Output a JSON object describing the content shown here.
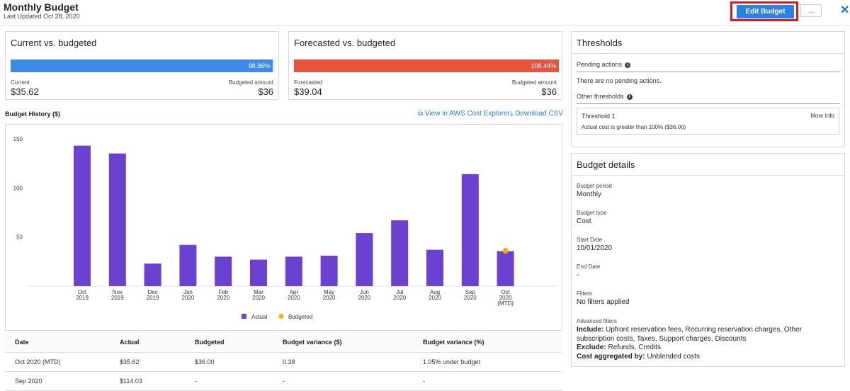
{
  "header": {
    "title": "Monthly Budget",
    "subtitle": "Last Updated Oct 28, 2020",
    "edit_label": "Edit Budget",
    "more_label": "...",
    "close_icon": "close-icon"
  },
  "current": {
    "title": "Current vs. budgeted",
    "percent_label": "98.96%",
    "percent": 98.96,
    "bar_color": "#3d8ae8",
    "left_label": "Current",
    "left_value": "$35.62",
    "right_label": "Budgeted amount",
    "right_value": "$36"
  },
  "forecast": {
    "title": "Forecasted vs. budgeted",
    "percent_label": "108.44%",
    "percent": 108.44,
    "bar_color": "#e4553b",
    "left_label": "Forecasted",
    "left_value": "$39.04",
    "right_label": "Budgeted amount",
    "right_value": "$36"
  },
  "history": {
    "title": "Budget History ($)",
    "explorer_link": "View in AWS Cost Explorer",
    "download_link": "Download CSV"
  },
  "chart_data": {
    "type": "bar",
    "categories": [
      [
        "Oct",
        "2019"
      ],
      [
        "Nov",
        "2019"
      ],
      [
        "Dec",
        "2019"
      ],
      [
        "Jan",
        "2020"
      ],
      [
        "Feb",
        "2020"
      ],
      [
        "Mar",
        "2020"
      ],
      [
        "Apr",
        "2020"
      ],
      [
        "May",
        "2020"
      ],
      [
        "Jun",
        "2020"
      ],
      [
        "Jul",
        "2020"
      ],
      [
        "Aug",
        "2020"
      ],
      [
        "Sep",
        "2020"
      ],
      [
        "Oct",
        "2020",
        "(MTD)"
      ]
    ],
    "series": [
      {
        "name": "Actual",
        "values": [
          143,
          135,
          23,
          42,
          30,
          27,
          30,
          31,
          54,
          67,
          37,
          114,
          35.62
        ],
        "color": "#6a41d1"
      }
    ],
    "budgeted": {
      "name": "Budgeted",
      "index": 12,
      "value": 36,
      "color": "#f0b400"
    },
    "yticks": [
      50,
      100,
      150
    ],
    "ylim": [
      0,
      160
    ],
    "legend": "bottom",
    "grid": false
  },
  "table": {
    "headers": [
      "Date",
      "Actual",
      "Budgeted",
      "Budget variance ($)",
      "Budget variance (%)"
    ],
    "rows": [
      [
        "Oct 2020 (MTD)",
        "$35.62",
        "$36.00",
        "0.38",
        "1.05% under budget"
      ],
      [
        "Sep 2020",
        "$114.03",
        "-",
        "-",
        "-"
      ]
    ]
  },
  "thresholds": {
    "title": "Thresholds",
    "pending_label": "Pending actions",
    "pending_text": "There are no pending actions.",
    "other_label": "Other thresholds",
    "threshold_name": "Threshold 1",
    "more_info": "More Info",
    "threshold_desc": "Actual cost is greater than 100% ($36.00)"
  },
  "details": {
    "title": "Budget details",
    "period_label": "Budget period",
    "period_value": "Monthly",
    "type_label": "Budget type",
    "type_value": "Cost",
    "start_label": "Start Date",
    "start_value": "10/01/2020",
    "end_label": "End Date",
    "end_value": "-",
    "filters_label": "Filters",
    "filters_value": "No filters applied",
    "adv_label": "Advanced filters",
    "include_label": "Include:",
    "include_value": "Upfront reservation fees, Recurring reservation charges, Other subscription costs, Taxes, Support charges, Discounts",
    "exclude_label": "Exclude:",
    "exclude_value": "Refunds, Credits",
    "agg_label": "Cost aggregated by:",
    "agg_value": "Unblended costs"
  }
}
